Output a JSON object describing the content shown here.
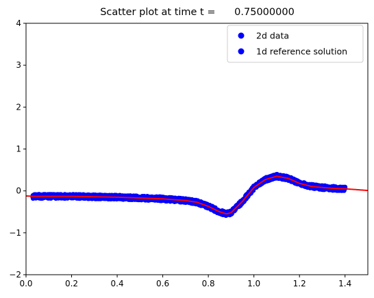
{
  "chart_data": {
    "type": "scatter",
    "title": "Scatter plot at time t =      0.75000000",
    "xlabel": "",
    "ylabel": "",
    "xlim": [
      0.0,
      1.5
    ],
    "ylim": [
      -2,
      4
    ],
    "x_ticks": [
      "0.0",
      "0.2",
      "0.4",
      "0.6",
      "0.8",
      "1.0",
      "1.2",
      "1.4"
    ],
    "y_ticks": [
      "-2",
      "-1",
      "0",
      "1",
      "2",
      "3",
      "4"
    ],
    "grid": false,
    "legend_position": "top-right",
    "series": [
      {
        "name": "2d data",
        "kind": "scatter",
        "color": "#0000ff",
        "x_range": [
          0.03,
          1.4
        ],
        "band_half_width": 0.05,
        "x": [
          0.03,
          0.1,
          0.2,
          0.3,
          0.4,
          0.5,
          0.6,
          0.7,
          0.75,
          0.8,
          0.85,
          0.88,
          0.9,
          0.95,
          1.0,
          1.05,
          1.1,
          1.15,
          1.2,
          1.25,
          1.3,
          1.35,
          1.4
        ],
        "y": [
          -0.13,
          -0.13,
          -0.13,
          -0.14,
          -0.15,
          -0.17,
          -0.19,
          -0.23,
          -0.27,
          -0.37,
          -0.5,
          -0.55,
          -0.52,
          -0.25,
          0.08,
          0.27,
          0.35,
          0.3,
          0.18,
          0.11,
          0.08,
          0.06,
          0.05
        ]
      },
      {
        "name": "1d reference solution",
        "kind": "line",
        "color": "#ff0000",
        "x": [
          0.0,
          0.03,
          0.1,
          0.2,
          0.3,
          0.4,
          0.5,
          0.6,
          0.7,
          0.75,
          0.8,
          0.85,
          0.88,
          0.9,
          0.95,
          1.0,
          1.05,
          1.1,
          1.15,
          1.2,
          1.25,
          1.3,
          1.35,
          1.4,
          1.5
        ],
        "y": [
          -0.12,
          -0.13,
          -0.13,
          -0.13,
          -0.14,
          -0.15,
          -0.17,
          -0.19,
          -0.23,
          -0.27,
          -0.37,
          -0.5,
          -0.55,
          -0.52,
          -0.25,
          0.08,
          0.27,
          0.35,
          0.3,
          0.18,
          0.11,
          0.08,
          0.06,
          0.05,
          0.01
        ]
      }
    ]
  }
}
